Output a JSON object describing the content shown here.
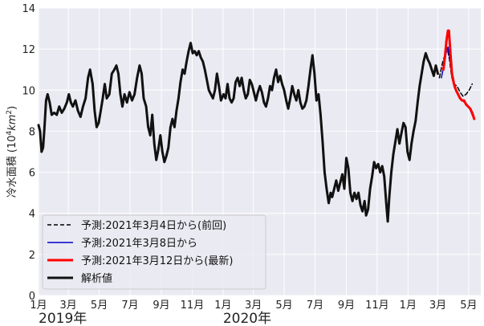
{
  "chart_data": {
    "type": "line",
    "ylabel_main": "冷水面積 (10",
    "ylabel_sup": "4",
    "ylabel_tail": "km",
    "ylabel_sup2": "2",
    "ylabel_close": ")",
    "ylim": [
      0,
      14
    ],
    "yticks": [
      0,
      2,
      4,
      6,
      8,
      10,
      12,
      14
    ],
    "xlim": [
      "2019-01-01",
      "2021-05-25"
    ],
    "month_ticks": [
      {
        "date": "2019-01-01",
        "label": "1月"
      },
      {
        "date": "2019-03-01",
        "label": "3月"
      },
      {
        "date": "2019-05-01",
        "label": "5月"
      },
      {
        "date": "2019-07-01",
        "label": "7月"
      },
      {
        "date": "2019-09-01",
        "label": "9月"
      },
      {
        "date": "2019-11-01",
        "label": "11月"
      },
      {
        "date": "2020-01-01",
        "label": "1月"
      },
      {
        "date": "2020-03-01",
        "label": "3月"
      },
      {
        "date": "2020-05-01",
        "label": "5月"
      },
      {
        "date": "2020-07-01",
        "label": "7月"
      },
      {
        "date": "2020-09-01",
        "label": "9月"
      },
      {
        "date": "2020-11-01",
        "label": "11月"
      },
      {
        "date": "2021-01-01",
        "label": "1月"
      },
      {
        "date": "2021-03-01",
        "label": "3月"
      },
      {
        "date": "2021-05-01",
        "label": "5月"
      }
    ],
    "year_labels": [
      {
        "date": "2019-01-01",
        "label": "2019年"
      },
      {
        "date": "2020-01-01",
        "label": "2020年"
      }
    ],
    "grid": true,
    "legend_position": "bottom-left",
    "series": [
      {
        "name": "予測:2021年3月4日から(前回)",
        "color": "#000000",
        "style": "dashed",
        "points": [
          [
            "2021-03-04",
            10.6
          ],
          [
            "2021-03-10",
            11.3
          ],
          [
            "2021-03-16",
            11.8
          ],
          [
            "2021-03-20",
            12.0
          ],
          [
            "2021-03-24",
            11.5
          ],
          [
            "2021-03-28",
            10.7
          ],
          [
            "2021-04-02",
            10.3
          ],
          [
            "2021-04-08",
            10.2
          ],
          [
            "2021-04-14",
            9.9
          ],
          [
            "2021-04-20",
            9.7
          ],
          [
            "2021-04-26",
            9.8
          ],
          [
            "2021-05-02",
            10.0
          ],
          [
            "2021-05-08",
            10.3
          ]
        ]
      },
      {
        "name": "予測:2021年3月8日から",
        "color": "#0000cc",
        "style": "solid",
        "points": [
          [
            "2021-03-08",
            10.6
          ],
          [
            "2021-03-13",
            11.2
          ],
          [
            "2021-03-18",
            11.9
          ],
          [
            "2021-03-21",
            12.1
          ],
          [
            "2021-03-25",
            11.5
          ],
          [
            "2021-03-29",
            10.6
          ],
          [
            "2021-04-03",
            10.1
          ],
          [
            "2021-04-08",
            9.9
          ],
          [
            "2021-04-13",
            9.7
          ],
          [
            "2021-04-18",
            9.5
          ],
          [
            "2021-04-23",
            9.4
          ],
          [
            "2021-04-28",
            9.3
          ],
          [
            "2021-05-03",
            9.1
          ],
          [
            "2021-05-08",
            8.8
          ],
          [
            "2021-05-12",
            8.6
          ]
        ]
      },
      {
        "name": "予測:2021年3月12日から(最新)",
        "color": "#ff0000",
        "style": "solid",
        "points": [
          [
            "2021-03-12",
            11.0
          ],
          [
            "2021-03-15",
            11.6
          ],
          [
            "2021-03-18",
            12.4
          ],
          [
            "2021-03-21",
            12.9
          ],
          [
            "2021-03-23",
            12.9
          ],
          [
            "2021-03-26",
            11.8
          ],
          [
            "2021-03-29",
            10.8
          ],
          [
            "2021-04-02",
            10.3
          ],
          [
            "2021-04-06",
            10.0
          ],
          [
            "2021-04-10",
            9.8
          ],
          [
            "2021-04-14",
            9.6
          ],
          [
            "2021-04-18",
            9.5
          ],
          [
            "2021-04-22",
            9.5
          ],
          [
            "2021-04-26",
            9.3
          ],
          [
            "2021-04-30",
            9.2
          ],
          [
            "2021-05-04",
            9.1
          ],
          [
            "2021-05-08",
            8.9
          ],
          [
            "2021-05-12",
            8.6
          ]
        ]
      },
      {
        "name": "解析値",
        "color": "#111111",
        "style": "solid",
        "points": [
          [
            "2019-01-01",
            8.3
          ],
          [
            "2019-01-04",
            8.0
          ],
          [
            "2019-01-07",
            7.0
          ],
          [
            "2019-01-10",
            7.2
          ],
          [
            "2019-01-13",
            8.3
          ],
          [
            "2019-01-16",
            9.5
          ],
          [
            "2019-01-19",
            9.8
          ],
          [
            "2019-01-23",
            9.4
          ],
          [
            "2019-01-27",
            8.8
          ],
          [
            "2019-02-01",
            8.9
          ],
          [
            "2019-02-06",
            8.8
          ],
          [
            "2019-02-11",
            9.2
          ],
          [
            "2019-02-16",
            8.9
          ],
          [
            "2019-02-21",
            9.1
          ],
          [
            "2019-02-26",
            9.4
          ],
          [
            "2019-03-02",
            9.8
          ],
          [
            "2019-03-06",
            9.4
          ],
          [
            "2019-03-10",
            9.2
          ],
          [
            "2019-03-15",
            9.5
          ],
          [
            "2019-03-20",
            9.0
          ],
          [
            "2019-03-25",
            8.7
          ],
          [
            "2019-03-30",
            9.2
          ],
          [
            "2019-04-04",
            9.6
          ],
          [
            "2019-04-09",
            10.6
          ],
          [
            "2019-04-13",
            11.0
          ],
          [
            "2019-04-18",
            10.3
          ],
          [
            "2019-04-22",
            9.0
          ],
          [
            "2019-04-26",
            8.2
          ],
          [
            "2019-04-30",
            8.4
          ],
          [
            "2019-05-04",
            9.0
          ],
          [
            "2019-05-08",
            9.6
          ],
          [
            "2019-05-12",
            10.3
          ],
          [
            "2019-05-16",
            9.6
          ],
          [
            "2019-05-21",
            9.8
          ],
          [
            "2019-05-26",
            10.8
          ],
          [
            "2019-05-31",
            11.0
          ],
          [
            "2019-06-04",
            11.2
          ],
          [
            "2019-06-08",
            10.8
          ],
          [
            "2019-06-12",
            9.8
          ],
          [
            "2019-06-16",
            9.2
          ],
          [
            "2019-06-20",
            9.8
          ],
          [
            "2019-06-25",
            9.4
          ],
          [
            "2019-06-30",
            9.9
          ],
          [
            "2019-07-05",
            9.5
          ],
          [
            "2019-07-10",
            9.8
          ],
          [
            "2019-07-15",
            10.6
          ],
          [
            "2019-07-20",
            11.2
          ],
          [
            "2019-07-24",
            10.8
          ],
          [
            "2019-07-28",
            9.6
          ],
          [
            "2019-08-02",
            9.2
          ],
          [
            "2019-08-06",
            8.2
          ],
          [
            "2019-08-10",
            7.8
          ],
          [
            "2019-08-14",
            8.8
          ],
          [
            "2019-08-18",
            7.4
          ],
          [
            "2019-08-22",
            6.6
          ],
          [
            "2019-08-26",
            7.1
          ],
          [
            "2019-08-30",
            7.8
          ],
          [
            "2019-09-03",
            7.0
          ],
          [
            "2019-09-07",
            6.5
          ],
          [
            "2019-09-11",
            6.8
          ],
          [
            "2019-09-15",
            7.2
          ],
          [
            "2019-09-19",
            8.2
          ],
          [
            "2019-09-23",
            8.6
          ],
          [
            "2019-09-27",
            8.2
          ],
          [
            "2019-10-01",
            9.0
          ],
          [
            "2019-10-05",
            9.6
          ],
          [
            "2019-10-09",
            10.4
          ],
          [
            "2019-10-13",
            11.0
          ],
          [
            "2019-10-17",
            10.8
          ],
          [
            "2019-10-21",
            11.4
          ],
          [
            "2019-10-25",
            11.9
          ],
          [
            "2019-10-29",
            12.3
          ],
          [
            "2019-11-02",
            11.8
          ],
          [
            "2019-11-06",
            11.9
          ],
          [
            "2019-11-10",
            11.7
          ],
          [
            "2019-11-14",
            11.9
          ],
          [
            "2019-11-18",
            11.6
          ],
          [
            "2019-11-22",
            11.4
          ],
          [
            "2019-11-26",
            11.0
          ],
          [
            "2019-11-30",
            10.5
          ],
          [
            "2019-12-04",
            10.0
          ],
          [
            "2019-12-08",
            9.8
          ],
          [
            "2019-12-12",
            9.6
          ],
          [
            "2019-12-16",
            10.0
          ],
          [
            "2019-12-20",
            10.8
          ],
          [
            "2019-12-24",
            10.2
          ],
          [
            "2019-12-28",
            9.5
          ],
          [
            "2020-01-02",
            9.8
          ],
          [
            "2020-01-06",
            9.6
          ],
          [
            "2020-01-10",
            10.3
          ],
          [
            "2020-01-14",
            9.6
          ],
          [
            "2020-01-18",
            9.4
          ],
          [
            "2020-01-22",
            9.6
          ],
          [
            "2020-01-26",
            10.4
          ],
          [
            "2020-01-30",
            10.6
          ],
          [
            "2020-02-03",
            10.2
          ],
          [
            "2020-02-07",
            10.6
          ],
          [
            "2020-02-11",
            10.0
          ],
          [
            "2020-02-15",
            9.6
          ],
          [
            "2020-02-19",
            9.8
          ],
          [
            "2020-02-23",
            10.5
          ],
          [
            "2020-02-27",
            10.3
          ],
          [
            "2020-03-02",
            9.9
          ],
          [
            "2020-03-06",
            9.5
          ],
          [
            "2020-03-10",
            9.9
          ],
          [
            "2020-03-14",
            10.2
          ],
          [
            "2020-03-18",
            9.9
          ],
          [
            "2020-03-22",
            9.4
          ],
          [
            "2020-03-26",
            9.2
          ],
          [
            "2020-03-30",
            9.6
          ],
          [
            "2020-04-03",
            10.2
          ],
          [
            "2020-04-07",
            10.0
          ],
          [
            "2020-04-11",
            10.6
          ],
          [
            "2020-04-15",
            11.0
          ],
          [
            "2020-04-19",
            10.4
          ],
          [
            "2020-04-23",
            10.7
          ],
          [
            "2020-04-27",
            10.3
          ],
          [
            "2020-05-01",
            10.0
          ],
          [
            "2020-05-05",
            9.5
          ],
          [
            "2020-05-09",
            9.1
          ],
          [
            "2020-05-13",
            9.6
          ],
          [
            "2020-05-17",
            10.2
          ],
          [
            "2020-05-21",
            9.8
          ],
          [
            "2020-05-25",
            9.5
          ],
          [
            "2020-05-29",
            10.0
          ],
          [
            "2020-06-02",
            9.4
          ],
          [
            "2020-06-06",
            9.1
          ],
          [
            "2020-06-10",
            9.2
          ],
          [
            "2020-06-14",
            9.5
          ],
          [
            "2020-06-18",
            10.2
          ],
          [
            "2020-06-22",
            11.0
          ],
          [
            "2020-06-26",
            11.7
          ],
          [
            "2020-06-30",
            10.8
          ],
          [
            "2020-07-04",
            9.5
          ],
          [
            "2020-07-08",
            9.8
          ],
          [
            "2020-07-12",
            8.8
          ],
          [
            "2020-07-16",
            7.5
          ],
          [
            "2020-07-20",
            6.0
          ],
          [
            "2020-07-24",
            5.2
          ],
          [
            "2020-07-28",
            4.5
          ],
          [
            "2020-08-01",
            5.0
          ],
          [
            "2020-08-04",
            4.8
          ],
          [
            "2020-08-08",
            5.2
          ],
          [
            "2020-08-12",
            5.6
          ],
          [
            "2020-08-16",
            5.1
          ],
          [
            "2020-08-20",
            5.5
          ],
          [
            "2020-08-24",
            5.9
          ],
          [
            "2020-08-28",
            5.2
          ],
          [
            "2020-09-01",
            6.7
          ],
          [
            "2020-09-05",
            6.2
          ],
          [
            "2020-09-09",
            5.0
          ],
          [
            "2020-09-13",
            4.6
          ],
          [
            "2020-09-17",
            5.0
          ],
          [
            "2020-09-21",
            4.7
          ],
          [
            "2020-09-25",
            5.0
          ],
          [
            "2020-09-29",
            4.4
          ],
          [
            "2020-10-03",
            4.1
          ],
          [
            "2020-10-07",
            4.6
          ],
          [
            "2020-10-10",
            3.9
          ],
          [
            "2020-10-14",
            4.2
          ],
          [
            "2020-10-18",
            5.2
          ],
          [
            "2020-10-22",
            5.8
          ],
          [
            "2020-10-26",
            6.5
          ],
          [
            "2020-10-30",
            6.2
          ],
          [
            "2020-11-03",
            6.4
          ],
          [
            "2020-11-07",
            6.0
          ],
          [
            "2020-11-11",
            6.3
          ],
          [
            "2020-11-15",
            5.8
          ],
          [
            "2020-11-19",
            4.5
          ],
          [
            "2020-11-22",
            3.6
          ],
          [
            "2020-11-25",
            4.8
          ],
          [
            "2020-11-29",
            6.0
          ],
          [
            "2020-12-03",
            6.9
          ],
          [
            "2020-12-07",
            7.5
          ],
          [
            "2020-12-11",
            8.1
          ],
          [
            "2020-12-15",
            7.4
          ],
          [
            "2020-12-19",
            7.9
          ],
          [
            "2020-12-23",
            8.4
          ],
          [
            "2020-12-27",
            8.2
          ],
          [
            "2020-12-31",
            7.0
          ],
          [
            "2021-01-04",
            6.6
          ],
          [
            "2021-01-08",
            7.4
          ],
          [
            "2021-01-12",
            8.0
          ],
          [
            "2021-01-16",
            8.5
          ],
          [
            "2021-01-20",
            9.4
          ],
          [
            "2021-01-24",
            10.2
          ],
          [
            "2021-01-28",
            10.8
          ],
          [
            "2021-02-01",
            11.4
          ],
          [
            "2021-02-05",
            11.8
          ],
          [
            "2021-02-09",
            11.5
          ],
          [
            "2021-02-13",
            11.3
          ],
          [
            "2021-02-17",
            11.0
          ],
          [
            "2021-02-21",
            10.7
          ],
          [
            "2021-02-25",
            11.2
          ],
          [
            "2021-03-01",
            10.8
          ]
        ]
      }
    ]
  }
}
